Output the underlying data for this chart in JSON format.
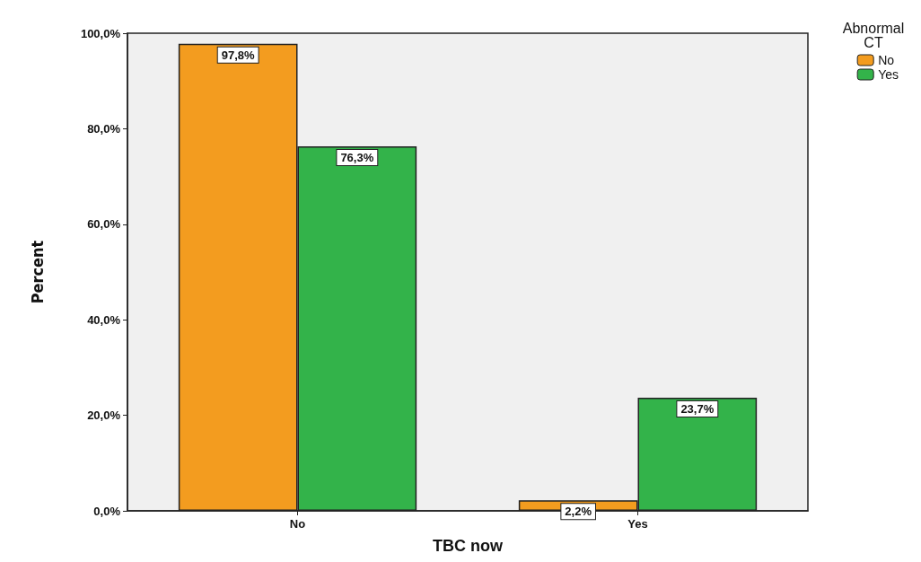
{
  "chart_data": {
    "type": "bar",
    "xlabel": "TBC now",
    "ylabel": "Percent",
    "legend_title": "Abnormal\nCT",
    "legend": "top right",
    "categories": [
      "No",
      "Yes"
    ],
    "series": [
      {
        "name": "No",
        "color": "#f39c1f",
        "values": [
          97.8,
          2.2
        ],
        "value_labels": [
          "97,8%",
          "2,2%"
        ]
      },
      {
        "name": "Yes",
        "color": "#33b34a",
        "values": [
          76.3,
          23.7
        ],
        "value_labels": [
          "76,3%",
          "23,7%"
        ]
      }
    ],
    "ylim": [
      0,
      100
    ],
    "yticks": [
      {
        "value": 0,
        "label": "0,0%"
      },
      {
        "value": 20,
        "label": "20,0%"
      },
      {
        "value": 40,
        "label": "40,0%"
      },
      {
        "value": 60,
        "label": "60,0%"
      },
      {
        "value": 80,
        "label": "80,0%"
      },
      {
        "value": 100,
        "label": "100,0%"
      }
    ],
    "grid": false
  }
}
